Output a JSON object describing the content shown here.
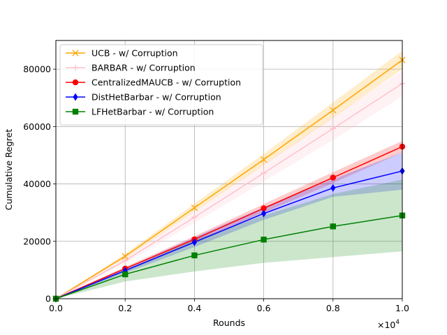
{
  "chart_data": {
    "type": "line",
    "xlabel": "Rounds",
    "ylabel": "Cumulative Regret",
    "x_multiplier": "×10",
    "x_multiplier_exp": "4",
    "xlim": [
      0,
      1.0
    ],
    "ylim": [
      0,
      90000
    ],
    "x_ticks": [
      0.0,
      0.2,
      0.4,
      0.6,
      0.8,
      1.0
    ],
    "x_tick_labels": [
      "0.0",
      "0.2",
      "0.4",
      "0.6",
      "0.8",
      "1.0"
    ],
    "y_ticks": [
      0,
      20000,
      40000,
      60000,
      80000
    ],
    "y_tick_labels": [
      "0",
      "20000",
      "40000",
      "60000",
      "80000"
    ],
    "grid": true,
    "legend_position": "upper-left",
    "x": [
      0.0,
      0.2,
      0.4,
      0.6,
      0.8,
      1.0
    ],
    "series": [
      {
        "name": "UCB - w/ Corruption",
        "color": "#ffa500",
        "marker": "x",
        "values": [
          0,
          14800,
          31700,
          48500,
          65700,
          83200
        ],
        "lower": [
          0,
          14000,
          30300,
          46500,
          63000,
          80000
        ],
        "upper": [
          0,
          15600,
          33100,
          50500,
          68400,
          86400
        ]
      },
      {
        "name": "BARBAR - w/ Corruption",
        "color": "#ffc0cb",
        "marker": "+",
        "values": [
          0,
          13300,
          28400,
          43800,
          59300,
          75000
        ],
        "lower": [
          0,
          12300,
          26400,
          40800,
          55300,
          70500
        ],
        "upper": [
          0,
          14300,
          30400,
          46800,
          63300,
          79500
        ]
      },
      {
        "name": "CentralizedMAUCB - w/ Corruption",
        "color": "#ff0000",
        "marker": "o",
        "values": [
          0,
          10500,
          20700,
          31500,
          42200,
          53000
        ],
        "lower": [
          0,
          9900,
          19600,
          30000,
          40300,
          51000
        ],
        "upper": [
          0,
          11100,
          21800,
          33000,
          44100,
          55000
        ]
      },
      {
        "name": "DistHetBarbar - w/ Corruption",
        "color": "#0000ff",
        "marker": "d",
        "values": [
          0,
          9800,
          19700,
          29700,
          38600,
          44500
        ],
        "lower": [
          0,
          9000,
          18000,
          27500,
          35500,
          38000
        ],
        "upper": [
          0,
          10600,
          21400,
          31900,
          41700,
          51000
        ]
      },
      {
        "name": "LFHetBarbar - w/ Corruption",
        "color": "#008000",
        "marker": "s",
        "values": [
          0,
          8500,
          15100,
          20600,
          25200,
          29000
        ],
        "lower": [
          0,
          6000,
          9500,
          12500,
          14500,
          16500
        ],
        "upper": [
          0,
          10000,
          20500,
          29000,
          36500,
          41500
        ]
      }
    ]
  }
}
